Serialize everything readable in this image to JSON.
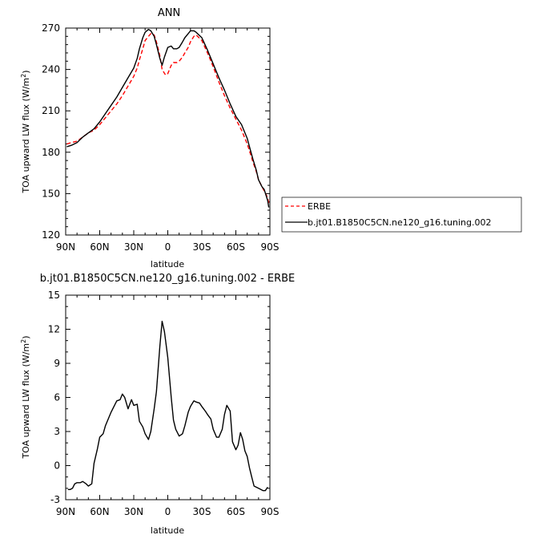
{
  "chart_data": [
    {
      "type": "line",
      "title": "ANN",
      "xlabel": "latitude",
      "ylabel_main": "TOA upward LW flux (W/m",
      "ylabel_sup": "2",
      "ylabel_end": ")",
      "xlim": [
        90,
        -90
      ],
      "ylim": [
        120,
        270
      ],
      "xticks": [
        90,
        60,
        30,
        0,
        -30,
        -60,
        -90
      ],
      "xtick_labels": [
        "90N",
        "60N",
        "30N",
        "0",
        "30S",
        "60S",
        "90S"
      ],
      "yticks": [
        120,
        150,
        180,
        210,
        240,
        270
      ],
      "ytick_labels": [
        "120",
        "150",
        "180",
        "210",
        "240",
        "270"
      ],
      "legend_position": "right",
      "series": [
        {
          "name": "ERBE",
          "color": "#ff0000",
          "dash": true,
          "x": [
            89,
            85,
            80,
            75,
            70,
            65,
            60,
            55,
            50,
            45,
            40,
            35,
            30,
            27,
            25,
            22,
            20,
            17,
            15,
            12,
            10,
            7,
            5,
            2,
            0,
            -3,
            -5,
            -8,
            -10,
            -13,
            -15,
            -18,
            -20,
            -23,
            -25,
            -30,
            -35,
            -40,
            -45,
            -50,
            -55,
            -60,
            -65,
            -70,
            -72,
            -75,
            -78,
            -80,
            -83,
            -85,
            -88,
            -89
          ],
          "y": [
            186,
            187,
            188,
            191,
            194,
            196,
            200,
            205,
            210,
            215,
            221,
            228,
            235,
            241,
            247,
            255,
            261,
            264,
            266,
            265,
            260,
            250,
            240,
            236,
            237,
            243,
            245,
            245,
            246,
            249,
            252,
            256,
            260,
            264,
            265,
            261,
            252,
            242,
            231,
            221,
            212,
            204,
            196,
            186,
            181,
            173,
            166,
            160,
            155,
            152,
            147,
            143
          ]
        },
        {
          "name": "b.jt01.B1850C5CN.ne120_g16.tuning.002",
          "color": "#000000",
          "dash": false,
          "x": [
            89,
            85,
            80,
            75,
            70,
            65,
            60,
            55,
            50,
            45,
            40,
            35,
            30,
            27,
            25,
            22,
            20,
            17,
            15,
            12,
            10,
            7,
            5,
            3,
            0,
            -3,
            -5,
            -8,
            -10,
            -13,
            -15,
            -18,
            -20,
            -23,
            -25,
            -30,
            -35,
            -40,
            -45,
            -50,
            -55,
            -60,
            -65,
            -70,
            -72,
            -75,
            -78,
            -80,
            -83,
            -85,
            -88,
            -89
          ],
          "y": [
            184,
            185,
            187,
            191,
            194,
            197,
            202,
            208,
            214,
            220,
            227,
            234,
            241,
            248,
            255,
            263,
            267,
            269,
            268,
            264,
            258,
            248,
            243,
            249,
            256,
            257,
            255,
            255,
            256,
            260,
            263,
            266,
            268,
            268,
            267,
            263,
            254,
            244,
            234,
            225,
            215,
            206,
            200,
            190,
            184,
            175,
            167,
            160,
            155,
            153,
            145,
            140
          ]
        }
      ]
    },
    {
      "type": "line",
      "title": "b.jt01.B1850C5CN.ne120_g16.tuning.002 - ERBE",
      "xlabel": "latitude",
      "ylabel_main": "TOA upward LW flux (W/m",
      "ylabel_sup": "2",
      "ylabel_end": ")",
      "xlim": [
        90,
        -90
      ],
      "ylim": [
        -3,
        15
      ],
      "xticks": [
        90,
        60,
        30,
        0,
        -30,
        -60,
        -90
      ],
      "xtick_labels": [
        "90N",
        "60N",
        "30N",
        "0",
        "30S",
        "60S",
        "90S"
      ],
      "yticks": [
        -3,
        0,
        3,
        6,
        9,
        12,
        15
      ],
      "ytick_labels": [
        "-3",
        "0",
        "3",
        "6",
        "9",
        "12",
        "15"
      ],
      "series": [
        {
          "color": "#000000",
          "dash": false,
          "x": [
            88,
            86,
            84,
            82,
            80,
            77,
            75,
            72,
            70,
            67,
            65,
            62,
            60,
            57,
            55,
            50,
            45,
            42,
            40,
            38,
            35,
            32,
            30,
            27,
            25,
            22,
            20,
            17,
            15,
            12,
            10,
            7,
            5,
            3,
            0,
            -3,
            -5,
            -7,
            -10,
            -13,
            -15,
            -18,
            -20,
            -23,
            -25,
            -28,
            -30,
            -33,
            -35,
            -38,
            -40,
            -43,
            -45,
            -48,
            -50,
            -52,
            -55,
            -57,
            -60,
            -62,
            -64,
            -66,
            -68,
            -70,
            -72,
            -74,
            -76,
            -78,
            -80,
            -82,
            -84,
            -86,
            -88
          ],
          "y": [
            -2.1,
            -2.1,
            -2.0,
            -1.6,
            -1.5,
            -1.5,
            -1.4,
            -1.6,
            -1.8,
            -1.6,
            0.2,
            1.5,
            2.5,
            2.8,
            3.5,
            4.7,
            5.7,
            5.8,
            6.3,
            6.0,
            5.0,
            5.8,
            5.3,
            5.4,
            3.9,
            3.4,
            2.8,
            2.3,
            3.0,
            5.0,
            6.5,
            10.5,
            12.7,
            11.8,
            9.5,
            6.0,
            4.0,
            3.2,
            2.6,
            2.8,
            3.5,
            4.7,
            5.2,
            5.7,
            5.6,
            5.5,
            5.2,
            4.8,
            4.5,
            4.1,
            3.2,
            2.5,
            2.5,
            3.2,
            4.5,
            5.3,
            4.8,
            2.1,
            1.4,
            1.8,
            2.9,
            2.3,
            1.3,
            0.8,
            -0.2,
            -1.0,
            -1.8,
            -1.9,
            -2.0,
            -2.1,
            -2.2,
            -2.2,
            -1.9
          ]
        }
      ]
    }
  ]
}
